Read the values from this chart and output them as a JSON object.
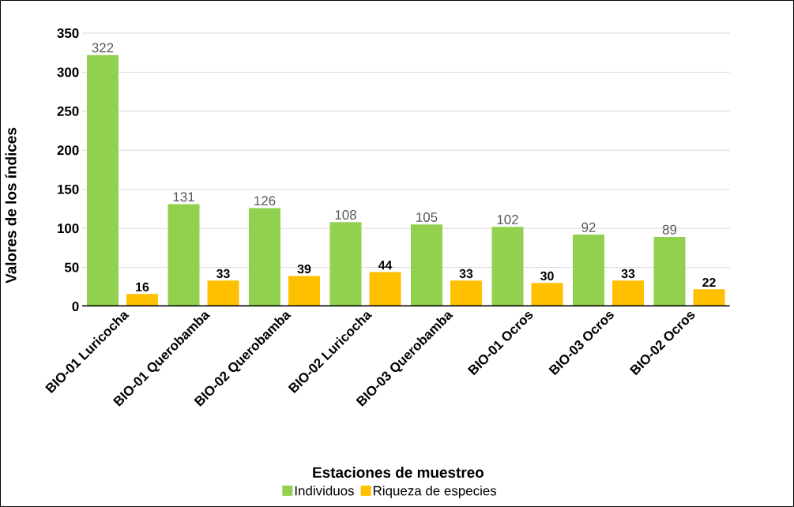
{
  "chart_data": {
    "type": "bar",
    "xlabel": "Estaciones de muestreo",
    "ylabel": "Valores de los índices",
    "categories": [
      "BIO-01 Luricocha",
      "BIO-01 Querobamba",
      "BIO-02 Querobamba",
      "BIO-02 Luricocha",
      "BIO-03 Querobamba",
      "BIO-01 Ocros",
      "BIO-03 Ocros",
      "BIO-02 Ocros"
    ],
    "series": [
      {
        "name": "Individuos",
        "color": "#92d050",
        "values": [
          322,
          131,
          126,
          108,
          105,
          102,
          92,
          89
        ]
      },
      {
        "name": "Riqueza de especies",
        "color": "#ffc000",
        "values": [
          16,
          33,
          39,
          44,
          33,
          30,
          33,
          22
        ]
      }
    ],
    "ylim": [
      0,
      350
    ],
    "yticks": [
      0,
      50,
      100,
      150,
      200,
      250,
      300,
      350
    ],
    "grid": "y",
    "legend": "bottom",
    "data_labels": true
  }
}
